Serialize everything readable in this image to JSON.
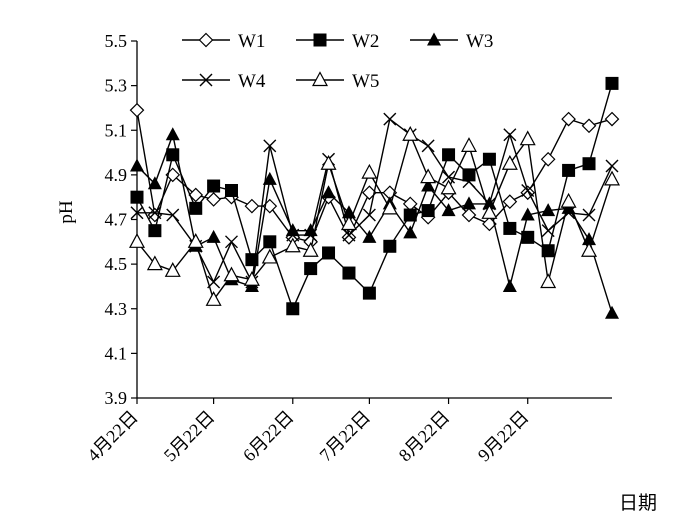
{
  "chart_data": {
    "type": "line",
    "title": "",
    "xlabel": "日期",
    "ylabel": "pH",
    "ylim": [
      3.9,
      5.5
    ],
    "yticks": [
      "3.9",
      "4.1",
      "4.3",
      "4.5",
      "4.7",
      "4.9",
      "5.1",
      "5.3",
      "5.5"
    ],
    "x_range": [
      "2024-04-22",
      "2024-10-25"
    ],
    "x_ticks": [
      {
        "date": "2024-04-22",
        "label": "4月22日"
      },
      {
        "date": "2024-05-22",
        "label": "5月22日"
      },
      {
        "date": "2024-06-22",
        "label": "6月22日"
      },
      {
        "date": "2024-07-22",
        "label": "7月22日"
      },
      {
        "date": "2024-08-22",
        "label": "8月22日"
      },
      {
        "date": "2024-09-22",
        "label": "9月22日"
      }
    ],
    "grid": false,
    "legend_position": "top",
    "x": [
      "2024-04-22",
      "2024-04-29",
      "2024-05-06",
      "2024-05-15",
      "2024-05-22",
      "2024-05-29",
      "2024-06-06",
      "2024-06-13",
      "2024-06-22",
      "2024-06-29",
      "2024-07-06",
      "2024-07-14",
      "2024-07-22",
      "2024-07-30",
      "2024-08-07",
      "2024-08-14",
      "2024-08-22",
      "2024-08-30",
      "2024-09-07",
      "2024-09-15",
      "2024-09-22",
      "2024-09-30",
      "2024-10-08",
      "2024-10-16",
      "2024-10-25"
    ],
    "series": [
      {
        "name": "W1",
        "marker": "diamond-open",
        "values": [
          5.19,
          4.72,
          4.9,
          4.81,
          4.79,
          4.8,
          4.76,
          4.76,
          4.62,
          4.6,
          4.8,
          4.62,
          4.82,
          4.82,
          4.77,
          4.71,
          4.82,
          4.72,
          4.68,
          4.78,
          4.82,
          4.97,
          5.15,
          5.12,
          5.15
        ]
      },
      {
        "name": "W2",
        "marker": "square-filled",
        "values": [
          4.8,
          4.65,
          4.99,
          4.75,
          4.85,
          4.83,
          4.52,
          4.6,
          4.3,
          4.48,
          4.55,
          4.46,
          4.37,
          4.58,
          4.72,
          4.74,
          4.99,
          4.9,
          4.97,
          4.66,
          4.62,
          4.56,
          4.92,
          4.95,
          5.31
        ]
      },
      {
        "name": "W3",
        "marker": "triangle-filled",
        "values": [
          4.94,
          4.86,
          5.08,
          4.58,
          4.62,
          4.43,
          4.4,
          4.88,
          4.65,
          4.65,
          4.82,
          4.73,
          4.62,
          4.77,
          4.64,
          4.85,
          4.74,
          4.77,
          4.77,
          4.4,
          4.72,
          4.74,
          4.75,
          4.61,
          4.28
        ]
      },
      {
        "name": "W4",
        "marker": "x",
        "values": [
          4.73,
          4.73,
          4.72,
          4.58,
          4.42,
          4.6,
          4.42,
          5.03,
          4.63,
          4.63,
          4.97,
          4.63,
          4.72,
          5.15,
          5.08,
          5.03,
          4.89,
          4.87,
          4.77,
          5.08,
          4.83,
          4.65,
          4.73,
          4.72,
          4.94
        ]
      },
      {
        "name": "W5",
        "marker": "triangle-open",
        "values": [
          4.6,
          4.5,
          4.47,
          4.6,
          4.34,
          4.45,
          4.43,
          4.53,
          4.58,
          4.56,
          4.95,
          4.68,
          4.91,
          4.75,
          5.08,
          4.89,
          4.84,
          5.03,
          4.73,
          4.95,
          5.06,
          4.42,
          4.78,
          4.56,
          4.88
        ]
      }
    ]
  }
}
